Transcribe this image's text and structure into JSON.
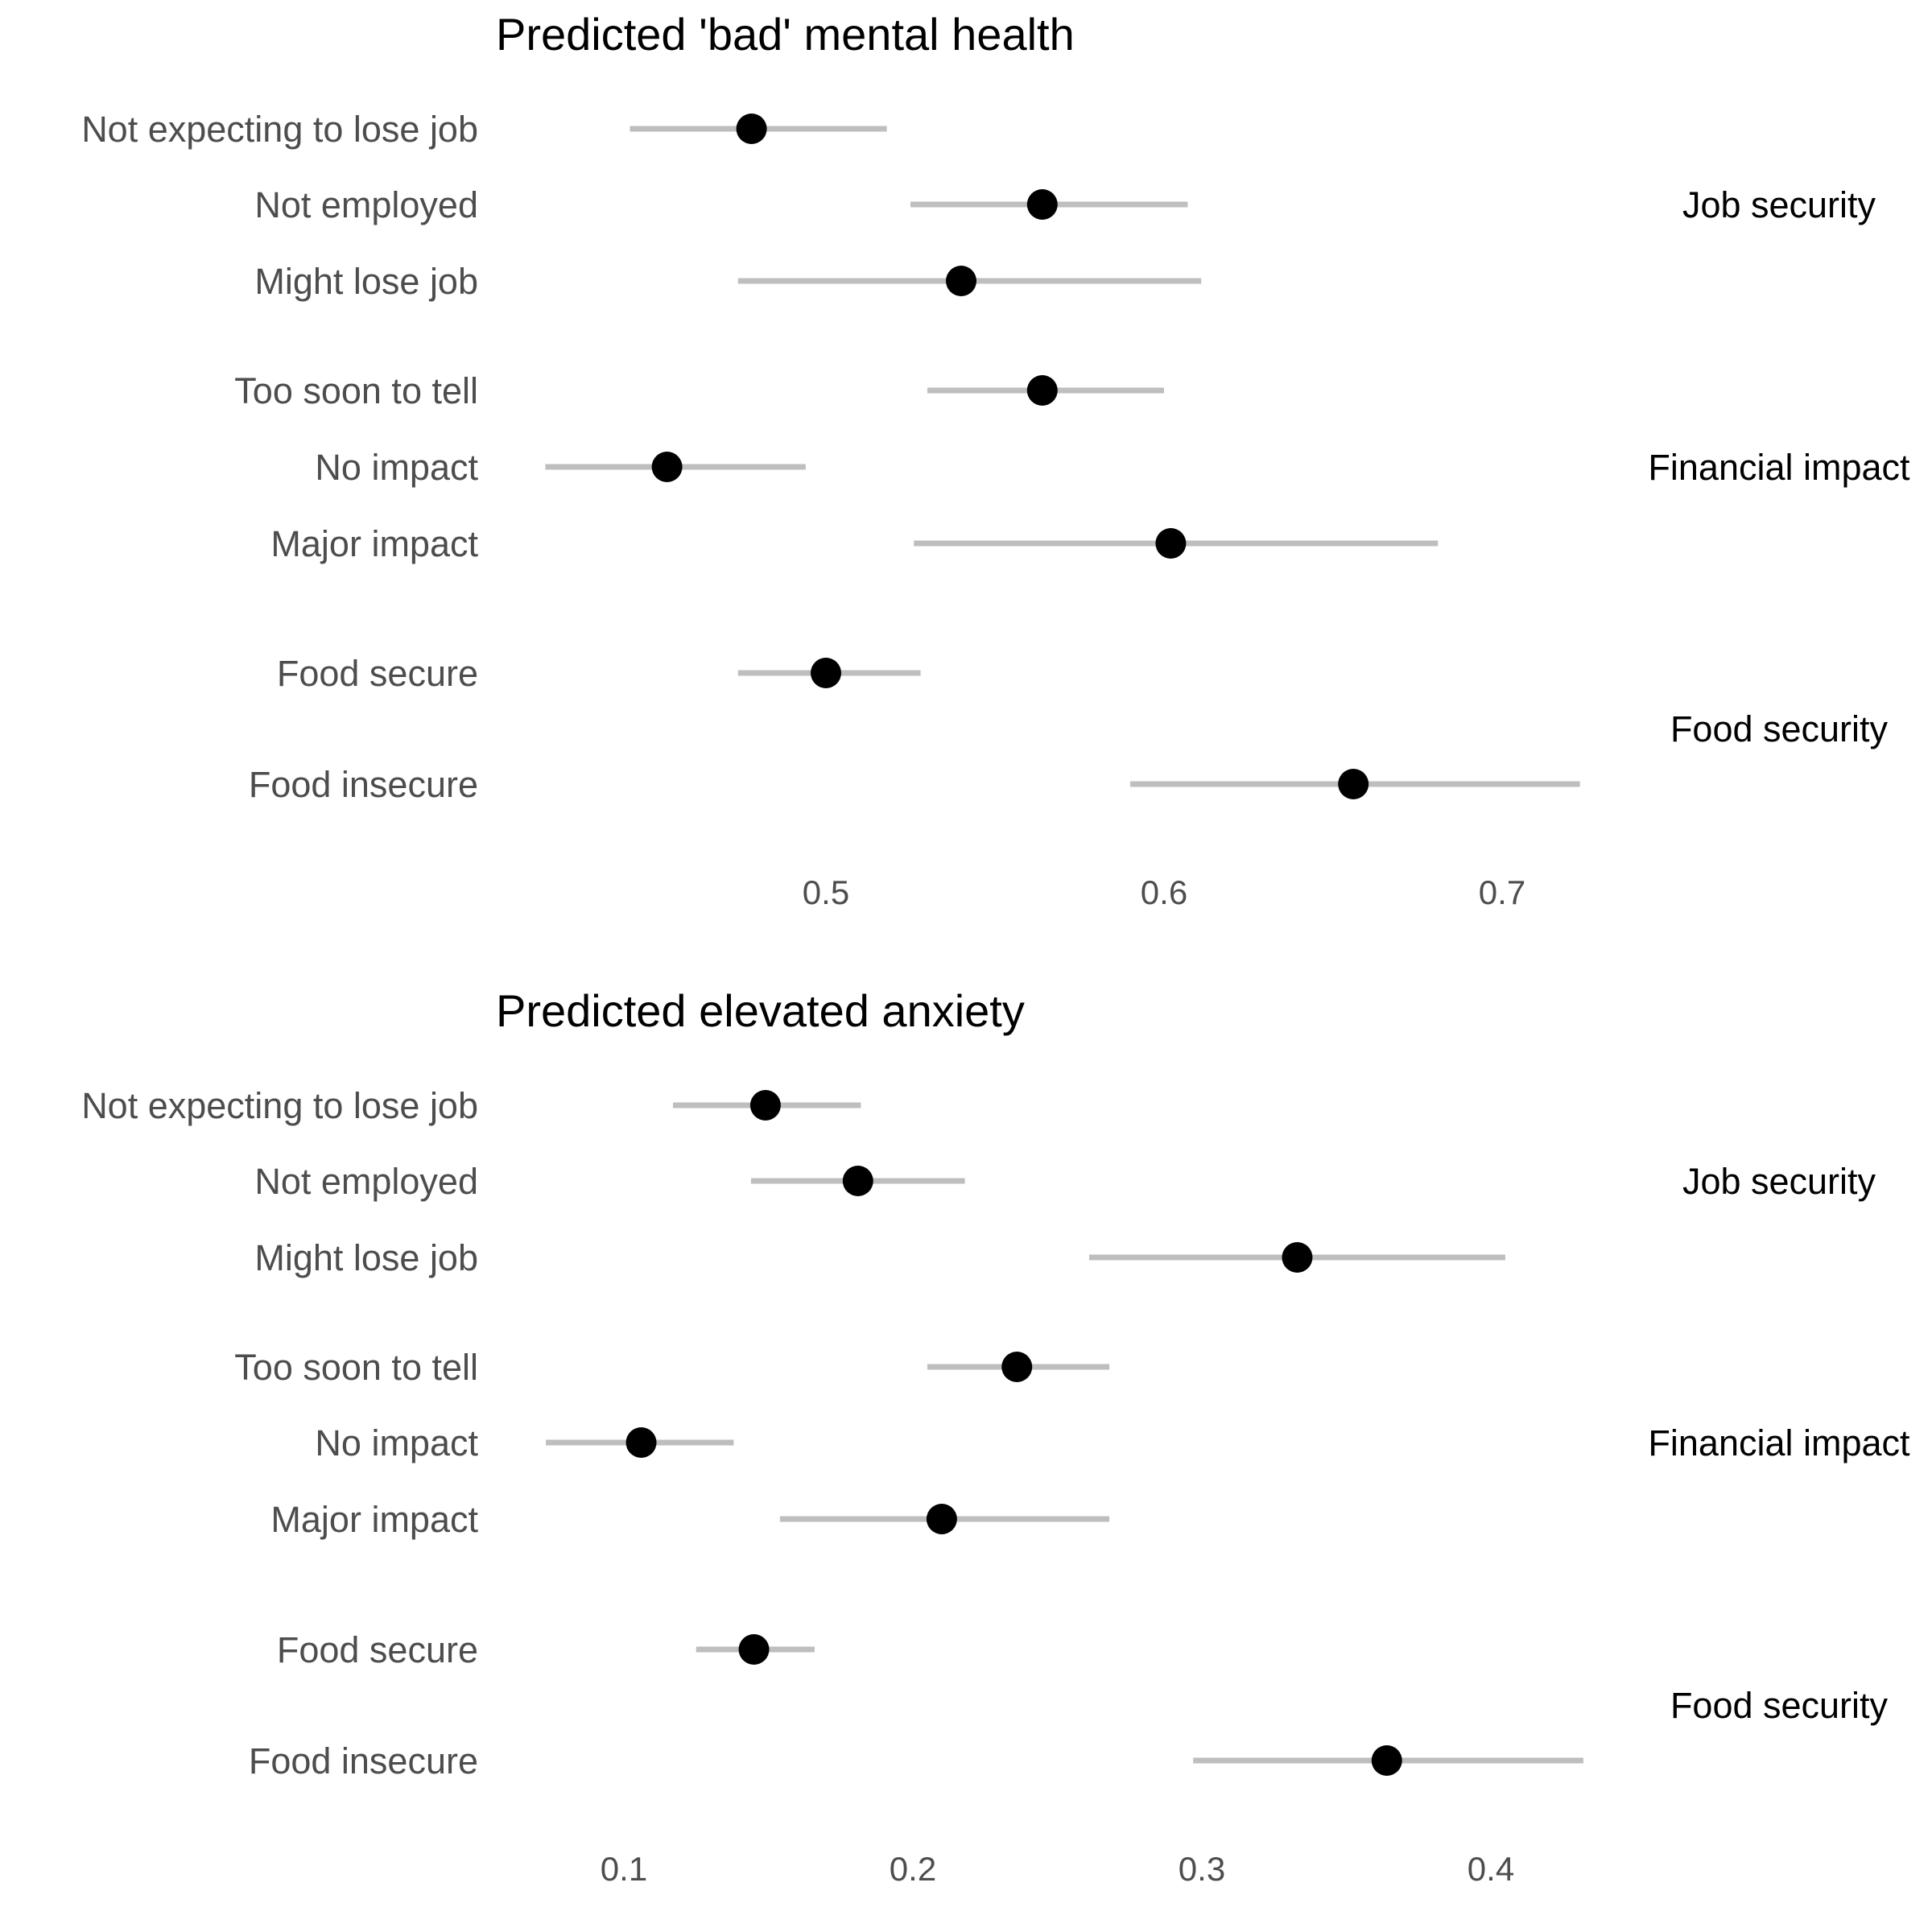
{
  "chart_data": [
    {
      "type": "dot-errorbar",
      "title": "Predicted 'bad' mental health",
      "xlim": [
        0.4,
        0.74
      ],
      "xticks": [
        "0.5",
        "0.6",
        "0.7"
      ],
      "xtick_values": [
        0.5,
        0.6,
        0.7
      ],
      "grid": false,
      "groups": [
        {
          "name": "Job security",
          "rows": [
            {
              "label": "Not expecting to lose job",
              "estimate": 0.478,
              "lower": 0.442,
              "upper": 0.518
            },
            {
              "label": "Not employed",
              "estimate": 0.564,
              "lower": 0.525,
              "upper": 0.607
            },
            {
              "label": "Might lose job",
              "estimate": 0.54,
              "lower": 0.474,
              "upper": 0.611
            }
          ]
        },
        {
          "name": "Financial impact",
          "rows": [
            {
              "label": "Too soon to tell",
              "estimate": 0.564,
              "lower": 0.53,
              "upper": 0.6
            },
            {
              "label": "No impact",
              "estimate": 0.453,
              "lower": 0.417,
              "upper": 0.494
            },
            {
              "label": "Major impact",
              "estimate": 0.602,
              "lower": 0.526,
              "upper": 0.681
            }
          ]
        },
        {
          "name": "Food security",
          "rows": [
            {
              "label": "Food secure",
              "estimate": 0.5,
              "lower": 0.474,
              "upper": 0.528
            },
            {
              "label": "Food insecure",
              "estimate": 0.656,
              "lower": 0.59,
              "upper": 0.723
            }
          ]
        }
      ]
    },
    {
      "type": "dot-errorbar",
      "title": "Predicted elevated anxiety",
      "xlim": [
        0.05,
        0.45
      ],
      "xticks": [
        "0.1",
        "0.2",
        "0.3",
        "0.4"
      ],
      "xtick_values": [
        0.1,
        0.2,
        0.3,
        0.4
      ],
      "grid": false,
      "groups": [
        {
          "name": "Job security",
          "rows": [
            {
              "label": "Not expecting to lose job",
              "estimate": 0.149,
              "lower": 0.117,
              "upper": 0.182
            },
            {
              "label": "Not employed",
              "estimate": 0.181,
              "lower": 0.144,
              "upper": 0.218
            },
            {
              "label": "Might lose job",
              "estimate": 0.333,
              "lower": 0.261,
              "upper": 0.405
            }
          ]
        },
        {
          "name": "Financial impact",
          "rows": [
            {
              "label": "Too soon to tell",
              "estimate": 0.236,
              "lower": 0.205,
              "upper": 0.268
            },
            {
              "label": "No impact",
              "estimate": 0.106,
              "lower": 0.073,
              "upper": 0.138
            },
            {
              "label": "Major impact",
              "estimate": 0.21,
              "lower": 0.154,
              "upper": 0.268
            }
          ]
        },
        {
          "name": "Food security",
          "rows": [
            {
              "label": "Food secure",
              "estimate": 0.145,
              "lower": 0.125,
              "upper": 0.166
            },
            {
              "label": "Food insecure",
              "estimate": 0.364,
              "lower": 0.297,
              "upper": 0.432
            }
          ]
        }
      ]
    }
  ]
}
